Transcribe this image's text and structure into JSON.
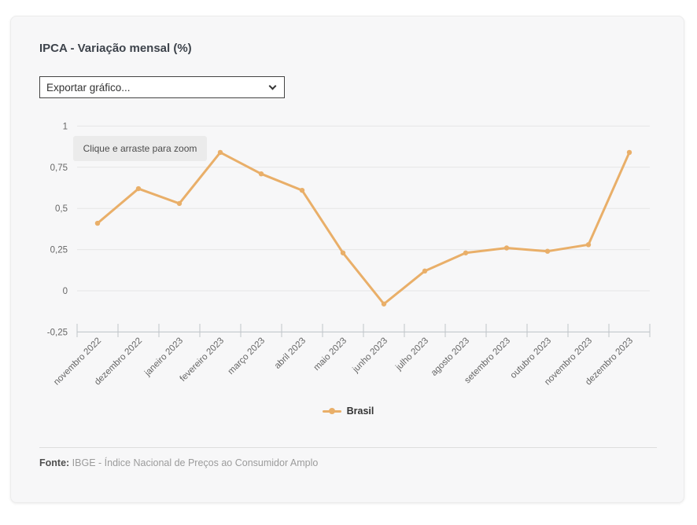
{
  "card": {
    "title": "IPCA - Variação mensal (%)",
    "export_select": {
      "value": "Exportar gráfico..."
    },
    "zoom_hint": "Clique e arraste para zoom",
    "footer": {
      "source_label": "Fonte:",
      "source_text": "IBGE - Índice Nacional de Preços ao Consumidor Amplo"
    }
  },
  "icons": {
    "export_select_chevron": "chevron-down"
  },
  "chart_data": {
    "type": "line",
    "title": "IPCA - Variação mensal (%)",
    "xlabel": "",
    "ylabel": "",
    "categories": [
      "novembro 2022",
      "dezembro 2022",
      "janeiro 2023",
      "fevereiro 2023",
      "março 2023",
      "abril 2023",
      "maio 2023",
      "junho 2023",
      "julho 2023",
      "agosto 2023",
      "setembro 2023",
      "outubro 2023",
      "novembro 2023",
      "dezembro 2023"
    ],
    "series": [
      {
        "name": "Brasil",
        "color": "#E9AF69",
        "values": [
          0.41,
          0.62,
          0.53,
          0.84,
          0.71,
          0.61,
          0.23,
          -0.08,
          0.12,
          0.23,
          0.26,
          0.24,
          0.28,
          0.84
        ]
      }
    ],
    "ylim": [
      -0.25,
      1
    ],
    "yticks": [
      {
        "value": 1,
        "label": "1"
      },
      {
        "value": 0.75,
        "label": "0,75"
      },
      {
        "value": 0.5,
        "label": "0,5"
      },
      {
        "value": 0.25,
        "label": "0,25"
      },
      {
        "value": 0,
        "label": "0"
      },
      {
        "value": -0.25,
        "label": "-0,25"
      }
    ],
    "grid": true,
    "legend_position": "bottom"
  },
  "colors": {
    "line": "#E9AF69",
    "grid": "#e6e6e6",
    "axis": "#bfc4c9",
    "axis_text": "#666666",
    "card_bg": "#f7f7f8",
    "zoom_hint_bg": "#ebebeb",
    "title_text": "#3d434b"
  }
}
